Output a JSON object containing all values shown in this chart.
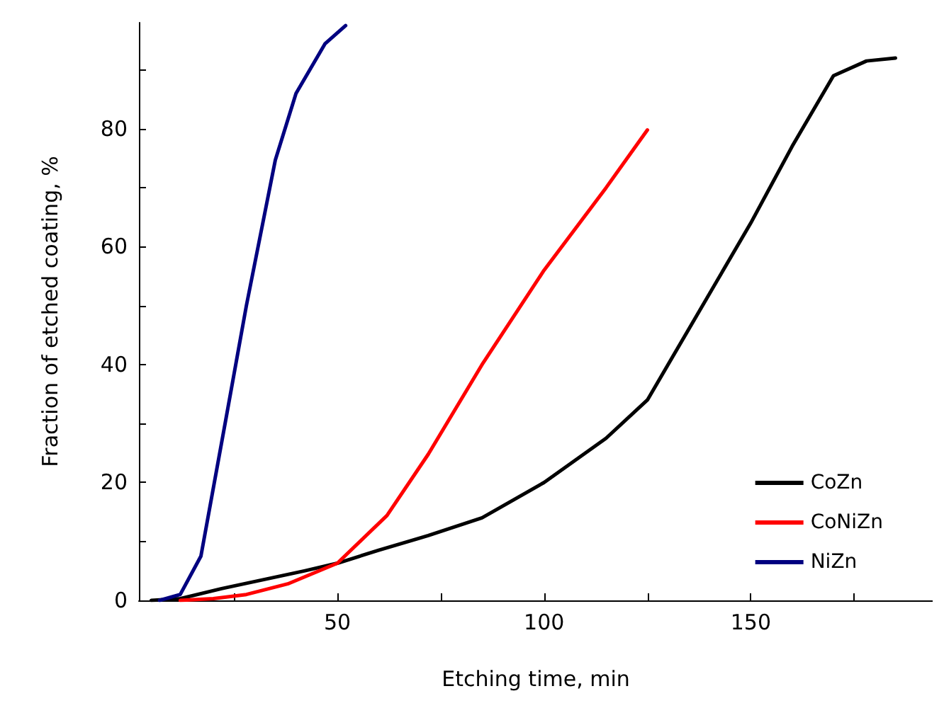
{
  "chart_data": {
    "type": "line",
    "xlabel": "Etching time, min",
    "ylabel": "Fraction of etched coating, %",
    "xlim": [
      2,
      194
    ],
    "ylim": [
      0,
      98
    ],
    "xticks": [
      {
        "value": 25,
        "label": null
      },
      50,
      {
        "value": 75,
        "label": null
      },
      100,
      {
        "value": 125,
        "label": null
      },
      150,
      {
        "value": 175,
        "label": null
      }
    ],
    "yticks": [
      0,
      {
        "value": 10,
        "label": null
      },
      20,
      {
        "value": 30,
        "label": null
      },
      40,
      {
        "value": 50,
        "label": null
      },
      60,
      {
        "value": 70,
        "label": null
      },
      80,
      {
        "value": 90,
        "label": null
      }
    ],
    "grid": false,
    "legend": "bottom right",
    "marker": "none",
    "line_style": "solid",
    "series": [
      {
        "name": "CoZn",
        "color": "#000000",
        "x": [
          5,
          12,
          22,
          32,
          42,
          50,
          60,
          72,
          85,
          100,
          115,
          125,
          135,
          150,
          160,
          170,
          178,
          185
        ],
        "values": [
          0,
          0.3,
          2,
          3.5,
          5,
          6.3,
          8.5,
          11,
          14,
          20,
          27.5,
          34,
          46,
          64,
          77,
          89,
          91.5,
          92
        ]
      },
      {
        "name": "CoNiZn",
        "color": "#ff0000",
        "x": [
          12,
          20,
          28,
          38,
          50,
          62,
          72,
          85,
          100,
          115,
          125
        ],
        "values": [
          0,
          0.3,
          1,
          2.8,
          6.3,
          14.4,
          24.8,
          40,
          56,
          70,
          79.8
        ]
      },
      {
        "name": "NiZn",
        "color": "#000080",
        "x": [
          7,
          12,
          17,
          23,
          28,
          35,
          40,
          47,
          52
        ],
        "values": [
          0,
          1,
          7.5,
          30.6,
          50,
          74.7,
          86,
          94.4,
          97.5
        ]
      }
    ]
  }
}
